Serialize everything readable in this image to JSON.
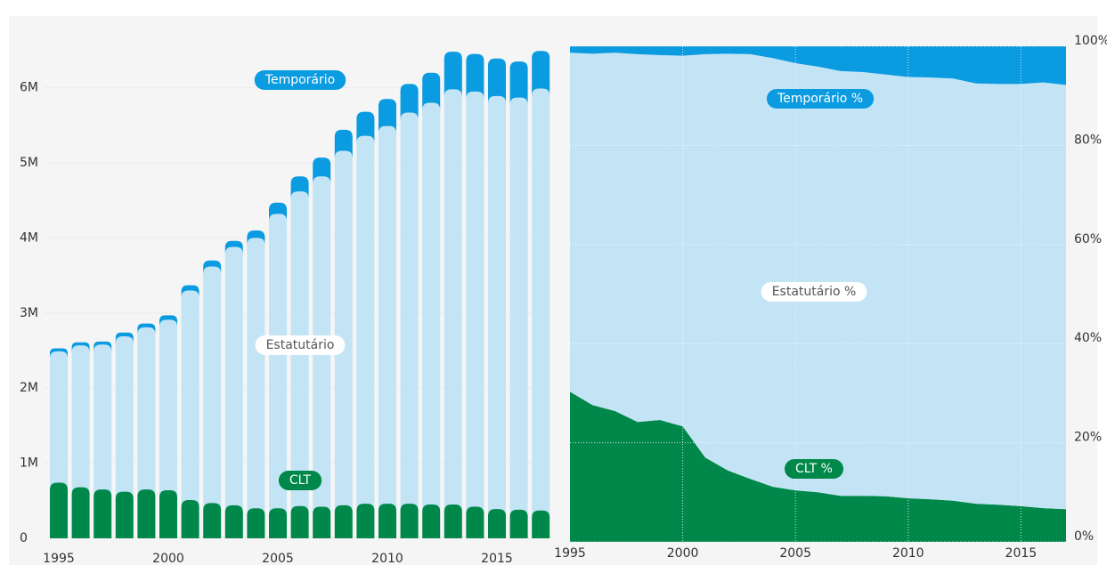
{
  "chart_data": [
    {
      "type": "stacked-bar",
      "x": [
        1995,
        1996,
        1997,
        1998,
        1999,
        2000,
        2001,
        2002,
        2003,
        2004,
        2005,
        2006,
        2007,
        2008,
        2009,
        2010,
        2011,
        2012,
        2013,
        2014,
        2015,
        2016,
        2017
      ],
      "xticks": [
        1995,
        2000,
        2005,
        2010,
        2015
      ],
      "ylim": [
        0,
        6.6
      ],
      "yticks": [
        0,
        {
          "value": 1,
          "label": "1M"
        },
        {
          "value": 2,
          "label": "2M"
        },
        {
          "value": 3,
          "label": "3M"
        },
        {
          "value": 4,
          "label": "4M"
        },
        {
          "value": 5,
          "label": "5M"
        },
        {
          "value": 6,
          "label": "6M"
        }
      ],
      "grid": true,
      "series": [
        {
          "name": "CLT",
          "color": "#00884a",
          "values": [
            0.74,
            0.68,
            0.65,
            0.62,
            0.65,
            0.64,
            0.51,
            0.47,
            0.44,
            0.4,
            0.4,
            0.43,
            0.42,
            0.44,
            0.46,
            0.46,
            0.46,
            0.45,
            0.45,
            0.42,
            0.39,
            0.38,
            0.37
          ]
        },
        {
          "name": "Estatutário",
          "color": "#c3e4f5",
          "values": [
            1.75,
            1.89,
            1.93,
            2.07,
            2.16,
            2.27,
            2.79,
            3.15,
            3.44,
            3.6,
            3.92,
            4.19,
            4.4,
            4.72,
            4.9,
            5.03,
            5.21,
            5.35,
            5.53,
            5.53,
            5.5,
            5.49,
            5.62
          ]
        },
        {
          "name": "Temporário",
          "color": "#0a9be0",
          "values": [
            0.04,
            0.04,
            0.04,
            0.05,
            0.05,
            0.06,
            0.07,
            0.08,
            0.08,
            0.1,
            0.15,
            0.2,
            0.25,
            0.28,
            0.32,
            0.36,
            0.38,
            0.4,
            0.5,
            0.5,
            0.5,
            0.48,
            0.5
          ]
        }
      ]
    },
    {
      "type": "stacked-area",
      "x": [
        1995,
        1996,
        1997,
        1998,
        1999,
        2000,
        2001,
        2002,
        2003,
        2004,
        2005,
        2006,
        2007,
        2008,
        2009,
        2010,
        2011,
        2012,
        2013,
        2014,
        2015,
        2016,
        2017
      ],
      "xlim": [
        1995,
        2017
      ],
      "xticks": [
        1995,
        2000,
        2005,
        2010,
        2015
      ],
      "ylim": [
        0,
        100
      ],
      "yticks": [
        {
          "value": 0,
          "label": "0%"
        },
        {
          "value": 20,
          "label": "20%"
        },
        {
          "value": 40,
          "label": "40%"
        },
        {
          "value": 60,
          "label": "60%"
        },
        {
          "value": 80,
          "label": "80%"
        },
        {
          "value": 100,
          "label": "100%"
        }
      ],
      "grid": true,
      "series": [
        {
          "name": "CLT %",
          "color": "#00884a",
          "values": [
            30.3,
            27.6,
            26.4,
            24.2,
            24.6,
            23.3,
            17,
            14.4,
            12.7,
            11.1,
            10.4,
            10,
            9.3,
            9.3,
            9.2,
            8.8,
            8.6,
            8.3,
            7.7,
            7.5,
            7.2,
            6.8,
            6.6
          ]
        },
        {
          "name": "Estatutário %",
          "color": "#c3e4f5",
          "values": [
            68.4,
            70.9,
            72.3,
            74.2,
            73.6,
            74.8,
            81.4,
            84.1,
            85.7,
            86.5,
            86.2,
            85.9,
            85.7,
            85.5,
            85.1,
            85.0,
            85.1,
            85.2,
            84.8,
            84.9,
            85.2,
            85.9,
            85.6
          ]
        },
        {
          "name": "Temporário %",
          "color": "#0a9be0",
          "values": [
            1.3,
            1.5,
            1.3,
            1.6,
            1.8,
            1.9,
            1.6,
            1.5,
            1.6,
            2.4,
            3.4,
            4.1,
            5.0,
            5.2,
            5.7,
            6.2,
            6.3,
            6.5,
            7.5,
            7.6,
            7.6,
            7.3,
            7.8
          ]
        }
      ]
    }
  ]
}
